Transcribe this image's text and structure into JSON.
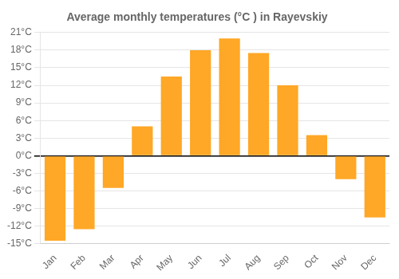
{
  "chart_data": {
    "type": "bar",
    "title": "Average monthly temperatures (°C ) in Rayevskiy",
    "categories": [
      "Jan",
      "Feb",
      "Mar",
      "Apr",
      "May",
      "Jun",
      "Jul",
      "Aug",
      "Sep",
      "Oct",
      "Nov",
      "Dec"
    ],
    "values": [
      -14.5,
      -12.5,
      -5.5,
      5.0,
      13.5,
      18.0,
      20.0,
      17.5,
      12.0,
      3.5,
      -4.0,
      -10.5
    ],
    "color": "#FFA726",
    "ylim": [
      -15,
      21
    ],
    "yticks": [
      {
        "value": -15,
        "label": "-15°C"
      },
      {
        "value": -12,
        "label": "-12°C"
      },
      {
        "value": -9,
        "label": "-9°C"
      },
      {
        "value": -6,
        "label": "-6°C"
      },
      {
        "value": -3,
        "label": "-3°C"
      },
      {
        "value": 0,
        "label": "0°C"
      },
      {
        "value": 3,
        "label": "3°C"
      },
      {
        "value": 6,
        "label": "6°C"
      },
      {
        "value": 9,
        "label": "9°C"
      },
      {
        "value": 12,
        "label": "12°C"
      },
      {
        "value": 15,
        "label": "15°C"
      },
      {
        "value": 18,
        "label": "18°C"
      },
      {
        "value": 21,
        "label": "21°C"
      }
    ],
    "grid": true
  }
}
